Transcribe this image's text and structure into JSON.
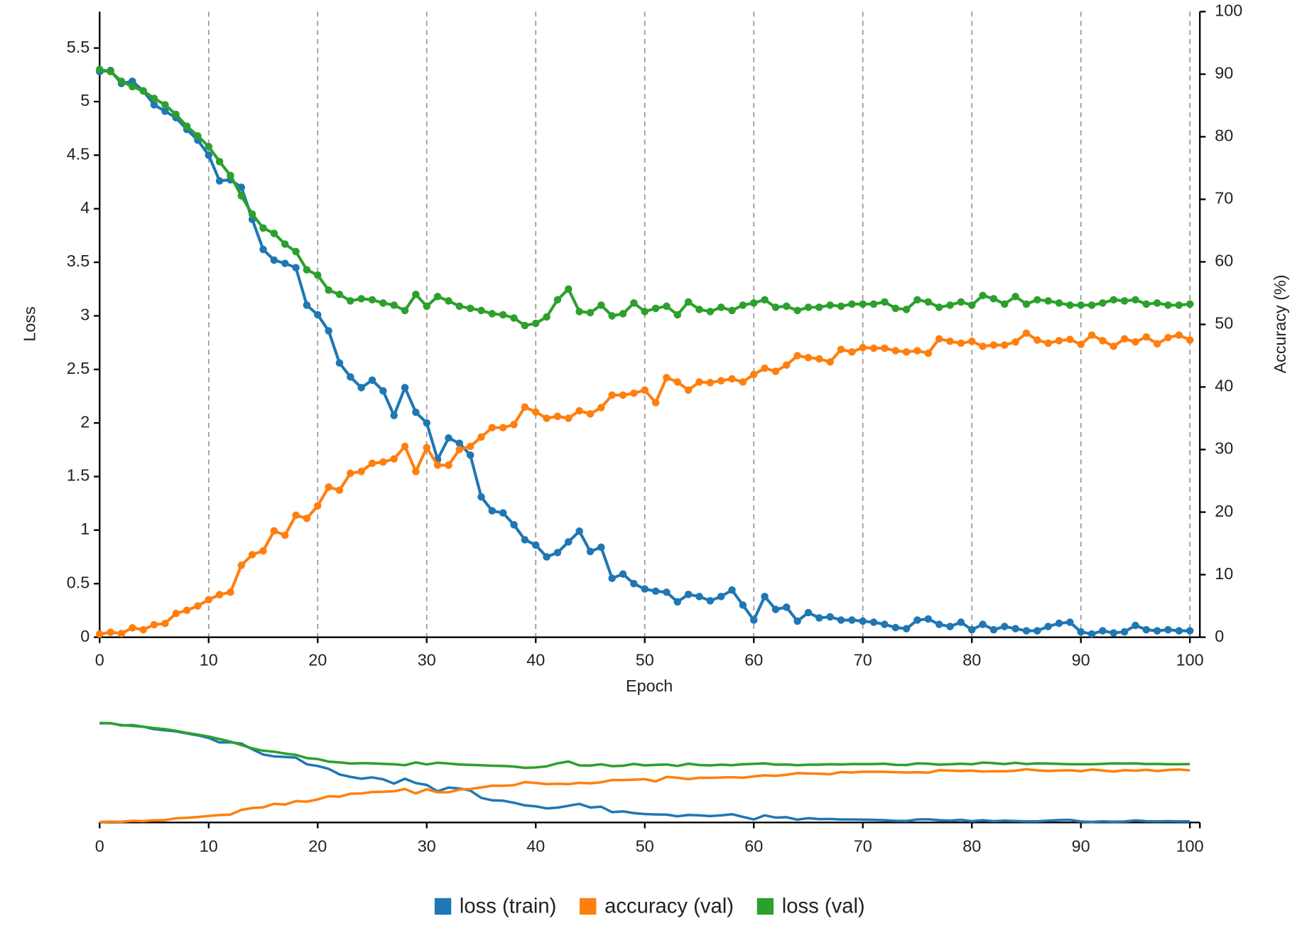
{
  "chart_data": {
    "type": "line",
    "xlabel": "Epoch",
    "ylabel": "Loss",
    "y2label": "Accuracy (%)",
    "xlim": [
      0,
      100
    ],
    "ylim": [
      0,
      5.84
    ],
    "y2lim": [
      0,
      100
    ],
    "xticks": [
      0,
      10,
      20,
      30,
      40,
      50,
      60,
      70,
      80,
      90,
      100
    ],
    "yticks": [
      0,
      0.5,
      1,
      1.5,
      2,
      2.5,
      3,
      3.5,
      4,
      4.5,
      5,
      5.5
    ],
    "y2ticks": [
      0,
      10,
      20,
      30,
      40,
      50,
      60,
      70,
      80,
      90,
      100
    ],
    "grid": true,
    "legend": "bottom",
    "x": [
      0,
      1,
      2,
      3,
      4,
      5,
      6,
      7,
      8,
      9,
      10,
      11,
      12,
      13,
      14,
      15,
      16,
      17,
      18,
      19,
      20,
      21,
      22,
      23,
      24,
      25,
      26,
      27,
      28,
      29,
      30,
      31,
      32,
      33,
      34,
      35,
      36,
      37,
      38,
      39,
      40,
      41,
      42,
      43,
      44,
      45,
      46,
      47,
      48,
      49,
      50,
      51,
      52,
      53,
      54,
      55,
      56,
      57,
      58,
      59,
      60,
      61,
      62,
      63,
      64,
      65,
      66,
      67,
      68,
      69,
      70,
      71,
      72,
      73,
      74,
      75,
      76,
      77,
      78,
      79,
      80,
      81,
      82,
      83,
      84,
      85,
      86,
      87,
      88,
      89,
      90,
      91,
      92,
      93,
      94,
      95,
      96,
      97,
      98,
      99,
      100
    ],
    "series": [
      {
        "name": "loss (train)",
        "color": "#1f77b4",
        "axis": "y",
        "values": [
          5.28,
          5.29,
          5.17,
          5.19,
          5.1,
          4.97,
          4.91,
          4.85,
          4.74,
          4.64,
          4.5,
          4.26,
          4.27,
          4.2,
          3.9,
          3.62,
          3.52,
          3.49,
          3.45,
          3.1,
          3.01,
          2.86,
          2.56,
          2.43,
          2.33,
          2.4,
          2.3,
          2.07,
          2.33,
          2.1,
          2.0,
          1.66,
          1.86,
          1.81,
          1.7,
          1.31,
          1.18,
          1.16,
          1.05,
          0.91,
          0.86,
          0.75,
          0.79,
          0.89,
          0.99,
          0.8,
          0.84,
          0.55,
          0.59,
          0.5,
          0.45,
          0.43,
          0.42,
          0.33,
          0.4,
          0.38,
          0.34,
          0.38,
          0.44,
          0.3,
          0.16,
          0.38,
          0.26,
          0.28,
          0.15,
          0.23,
          0.18,
          0.19,
          0.16,
          0.16,
          0.15,
          0.14,
          0.12,
          0.09,
          0.08,
          0.16,
          0.17,
          0.12,
          0.1,
          0.14,
          0.07,
          0.12,
          0.07,
          0.1,
          0.08,
          0.06,
          0.06,
          0.1,
          0.13,
          0.14,
          0.05,
          0.03,
          0.06,
          0.04,
          0.05,
          0.11,
          0.07,
          0.06,
          0.07,
          0.06,
          0.06
        ]
      },
      {
        "name": "accuracy (val)",
        "color": "#ff7f0e",
        "axis": "y2",
        "values": [
          0.5,
          0.8,
          0.6,
          1.5,
          1.2,
          2,
          2.2,
          3.8,
          4.3,
          5,
          6,
          6.8,
          7.2,
          11.5,
          13.2,
          13.8,
          17,
          16.3,
          19.5,
          19,
          21,
          24,
          23.5,
          26.2,
          26.5,
          27.8,
          28,
          28.5,
          30.5,
          26.5,
          30.3,
          27.5,
          27.5,
          30,
          30.5,
          32,
          33.5,
          33.5,
          34,
          36.8,
          36,
          35,
          35.3,
          35,
          36.2,
          35.7,
          36.7,
          38.7,
          38.7,
          39,
          39.5,
          37.5,
          41.5,
          40.8,
          39.5,
          40.8,
          40.7,
          41,
          41.3,
          40.8,
          42,
          43,
          42.5,
          43.5,
          45,
          44.7,
          44.5,
          44,
          46,
          45.6,
          46.3,
          46.2,
          46.2,
          45.8,
          45.6,
          45.8,
          45.4,
          47.7,
          47.3,
          47,
          47.3,
          46.5,
          46.7,
          46.7,
          47.2,
          48.6,
          47.5,
          47,
          47.4,
          47.6,
          46.8,
          48.3,
          47.4,
          46.5,
          47.7,
          47.2,
          48,
          46.9,
          47.9,
          48.3,
          47.5
        ]
      },
      {
        "name": "loss (val)",
        "color": "#2ca02c",
        "axis": "y",
        "values": [
          5.3,
          5.28,
          5.19,
          5.14,
          5.1,
          5.03,
          4.97,
          4.88,
          4.77,
          4.68,
          4.58,
          4.44,
          4.31,
          4.12,
          3.95,
          3.82,
          3.77,
          3.67,
          3.6,
          3.43,
          3.38,
          3.24,
          3.2,
          3.14,
          3.16,
          3.15,
          3.12,
          3.1,
          3.05,
          3.2,
          3.09,
          3.18,
          3.14,
          3.09,
          3.07,
          3.05,
          3.02,
          3.01,
          2.98,
          2.91,
          2.93,
          2.99,
          3.15,
          3.25,
          3.04,
          3.03,
          3.1,
          3.0,
          3.02,
          3.12,
          3.04,
          3.07,
          3.09,
          3.01,
          3.13,
          3.06,
          3.04,
          3.08,
          3.05,
          3.1,
          3.12,
          3.15,
          3.08,
          3.09,
          3.05,
          3.08,
          3.08,
          3.1,
          3.09,
          3.11,
          3.11,
          3.11,
          3.13,
          3.07,
          3.06,
          3.15,
          3.13,
          3.08,
          3.1,
          3.13,
          3.1,
          3.19,
          3.16,
          3.11,
          3.18,
          3.11,
          3.15,
          3.14,
          3.12,
          3.1,
          3.1,
          3.1,
          3.12,
          3.15,
          3.14,
          3.15,
          3.11,
          3.12,
          3.1,
          3.1,
          3.11
        ]
      }
    ]
  }
}
